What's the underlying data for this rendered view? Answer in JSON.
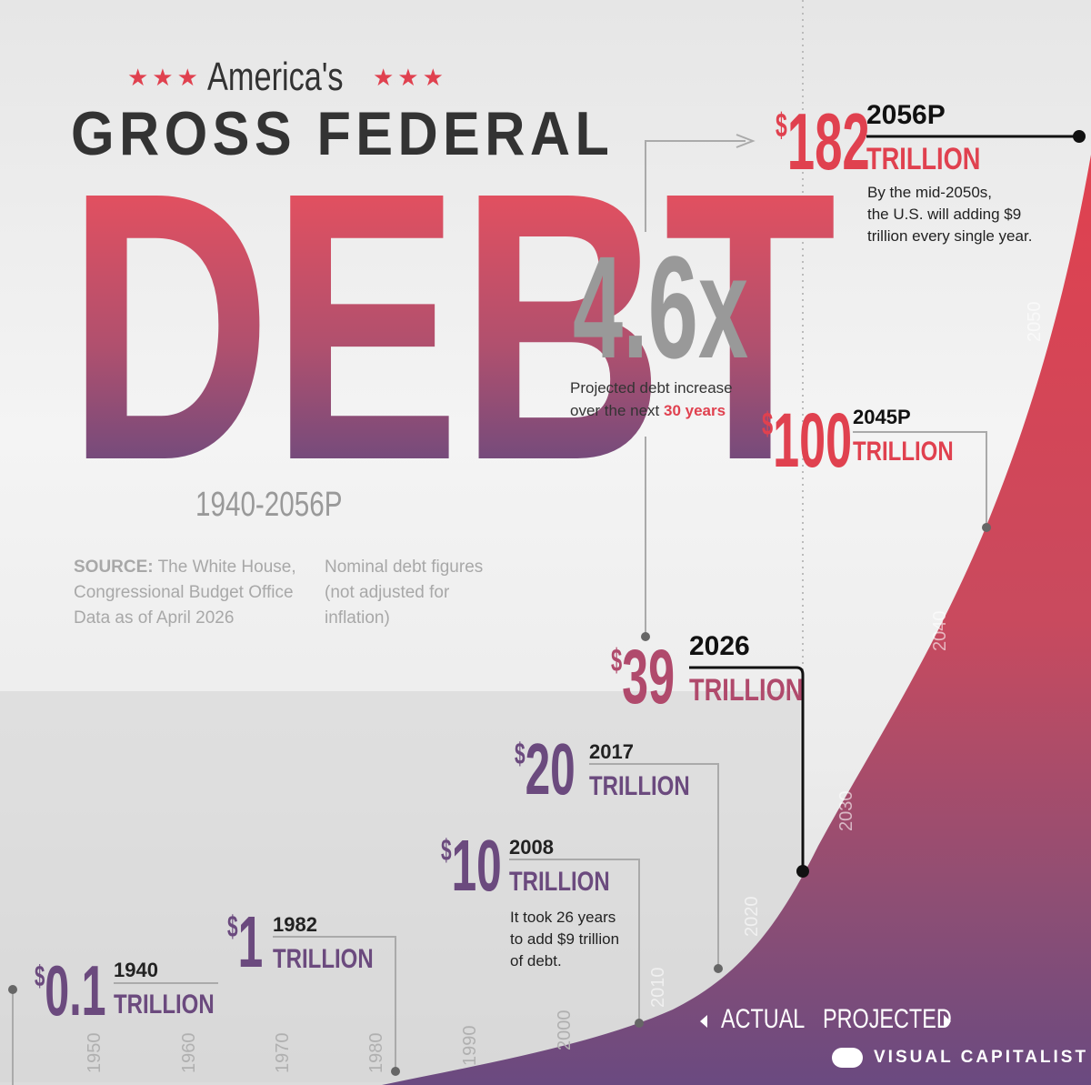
{
  "header": {
    "stars": "★★★",
    "kicker": "America's",
    "title": "GROSS FEDERAL",
    "headline": "DEBT",
    "period": "1940-2056P"
  },
  "source": {
    "label": "SOURCE:",
    "lines": [
      "The White House,",
      "Congressional Budget Office",
      "Data as of April 2026"
    ],
    "note": [
      "Nominal debt figures",
      "(not adjusted for",
      "inflation)"
    ]
  },
  "currency": "$",
  "unit": "TRILLION",
  "callouts": [
    {
      "year": "1940",
      "amount": 0.1
    },
    {
      "year": "1982",
      "amount": 1
    },
    {
      "year": "2008",
      "amount": 10,
      "note": [
        "It took 26 years",
        "to add $9 trillion",
        "of debt."
      ]
    },
    {
      "year": "2017",
      "amount": 20
    },
    {
      "year": "2026",
      "amount": 39
    },
    {
      "year": "2045P",
      "amount": 100
    },
    {
      "year": "2056P",
      "amount": 182,
      "note": [
        "By the mid-2050s,",
        "the U.S. will adding $9",
        "trillion every single year."
      ]
    }
  ],
  "multiplier": {
    "value": "4.6x",
    "caption": "Projected debt increase",
    "caption_prefix": "over the next",
    "highlight": "30 years"
  },
  "decades": [
    "1950",
    "1960",
    "1970",
    "1980",
    "1990",
    "2000",
    "2010",
    "2020",
    "2030",
    "2040",
    "2050"
  ],
  "legend": {
    "actual": "ACTUAL",
    "projected": "PROJECTED"
  },
  "brand": "VISUAL CAPITALIST"
}
